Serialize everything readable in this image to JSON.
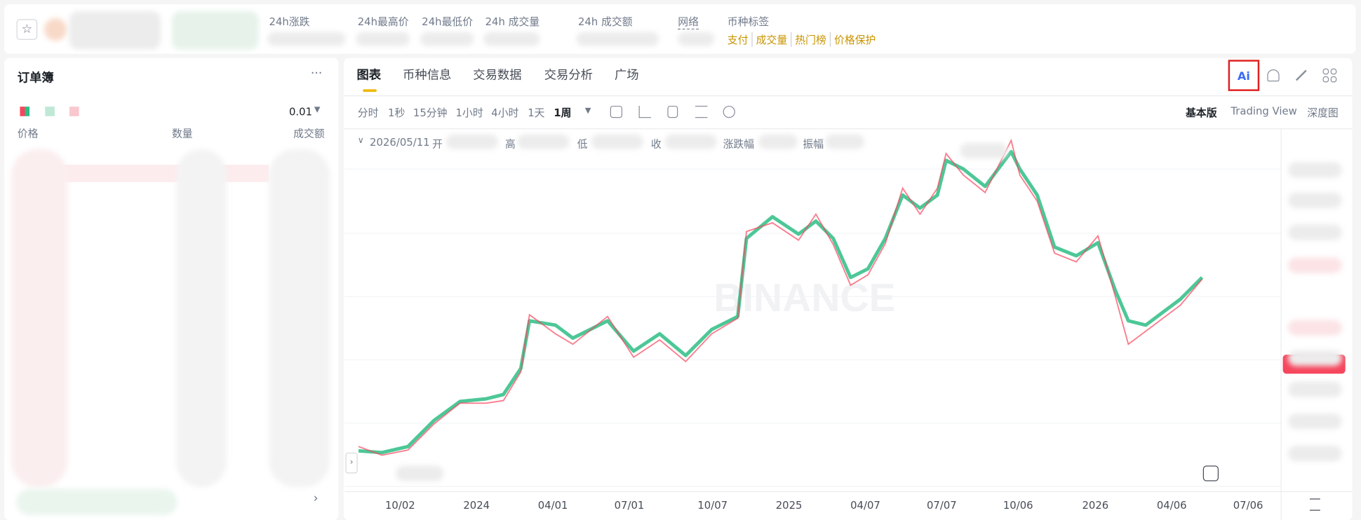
{
  "header": {
    "stats": [
      "24h涨跌",
      "24h最高价",
      "24h最低价",
      "24h 成交量",
      "24h 成交额"
    ],
    "network_label": "网络",
    "tags_label": "币种标签",
    "tags": [
      "支付",
      "成交量",
      "热门榜",
      "价格保护"
    ]
  },
  "order_book": {
    "title": "订单簿",
    "precision": "0.01",
    "columns": [
      "价格",
      "数量",
      "成交额"
    ]
  },
  "chart_panel": {
    "tabs": [
      "图表",
      "币种信息",
      "交易数据",
      "交易分析",
      "广场"
    ],
    "ai_button": "Ai",
    "intervals": [
      "分时",
      "1秒",
      "15分钟",
      "1小时",
      "4小时",
      "1天",
      "1周"
    ],
    "views": [
      "基本版",
      "Trading View",
      "深度图"
    ],
    "ohlc_bar": {
      "date": "2026/05/11",
      "labels": [
        "开",
        "高",
        "低",
        "收",
        "涨跌幅",
        "振幅"
      ]
    },
    "watermark": "BINANCE",
    "x_axis": [
      "10/02",
      "2024",
      "04/01",
      "07/01",
      "10/07",
      "2025",
      "04/07",
      "07/07",
      "10/06",
      "2026",
      "04/06",
      "07/06"
    ]
  }
}
